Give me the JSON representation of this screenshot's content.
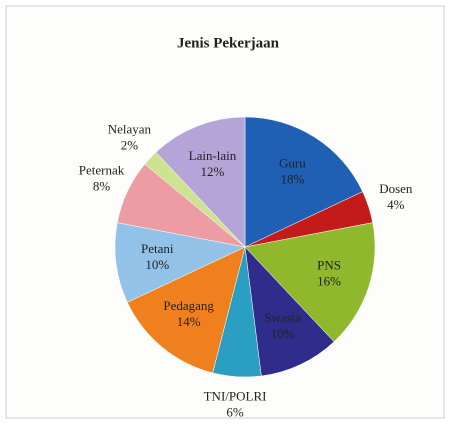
{
  "chart_data": {
    "type": "pie",
    "title": "Jenis Pekerjaan",
    "categories": [
      "Guru",
      "Dosen",
      "PNS",
      "Swasta",
      "TNI/POLRI",
      "Pedagang",
      "Petani",
      "Peternak",
      "Nelayan",
      "Lain-lain"
    ],
    "values": [
      18,
      4,
      16,
      10,
      6,
      14,
      10,
      8,
      2,
      12
    ],
    "value_labels": [
      "18%",
      "4%",
      "16%",
      "10%",
      "6%",
      "14%",
      "10%",
      "8%",
      "2%",
      "12%"
    ],
    "colors": [
      "#2060b4",
      "#c41a1a",
      "#8fb82c",
      "#2f2c8c",
      "#2a9fc2",
      "#f0801e",
      "#92c2e8",
      "#ec9ca2",
      "#cde392",
      "#b4a4d8"
    ]
  }
}
